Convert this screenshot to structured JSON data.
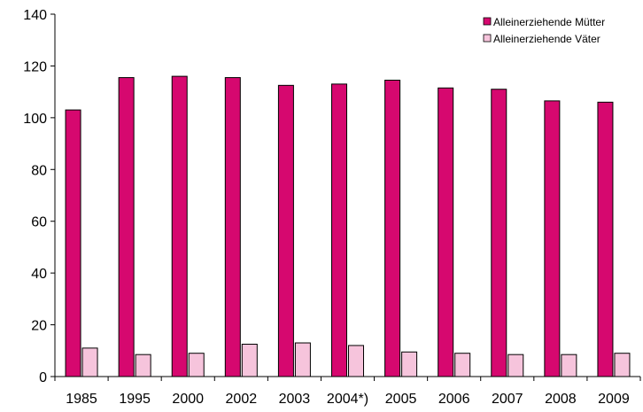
{
  "chart_data": {
    "type": "bar",
    "title": "",
    "xlabel": "",
    "ylabel": "",
    "categories": [
      "1985",
      "1995",
      "2000",
      "2002",
      "2003",
      "2004*)",
      "2005",
      "2006",
      "2007",
      "2008",
      "2009"
    ],
    "series": [
      {
        "name": "Alleinerziehende Mütter",
        "color": "#D6086F",
        "values": [
          103,
          115.5,
          116,
          115.5,
          112.5,
          113,
          114.5,
          111.5,
          111,
          106.5,
          106
        ]
      },
      {
        "name": "Alleinerziehende Väter",
        "color": "#F6C4DC",
        "values": [
          11,
          8.5,
          9,
          12.5,
          13,
          12,
          9.5,
          9,
          8.5,
          8.5,
          9
        ]
      }
    ],
    "ylim": [
      0,
      140
    ],
    "yticks": [
      0,
      20,
      40,
      60,
      80,
      100,
      120,
      140
    ],
    "grid": false,
    "legend_position": "top-right"
  }
}
